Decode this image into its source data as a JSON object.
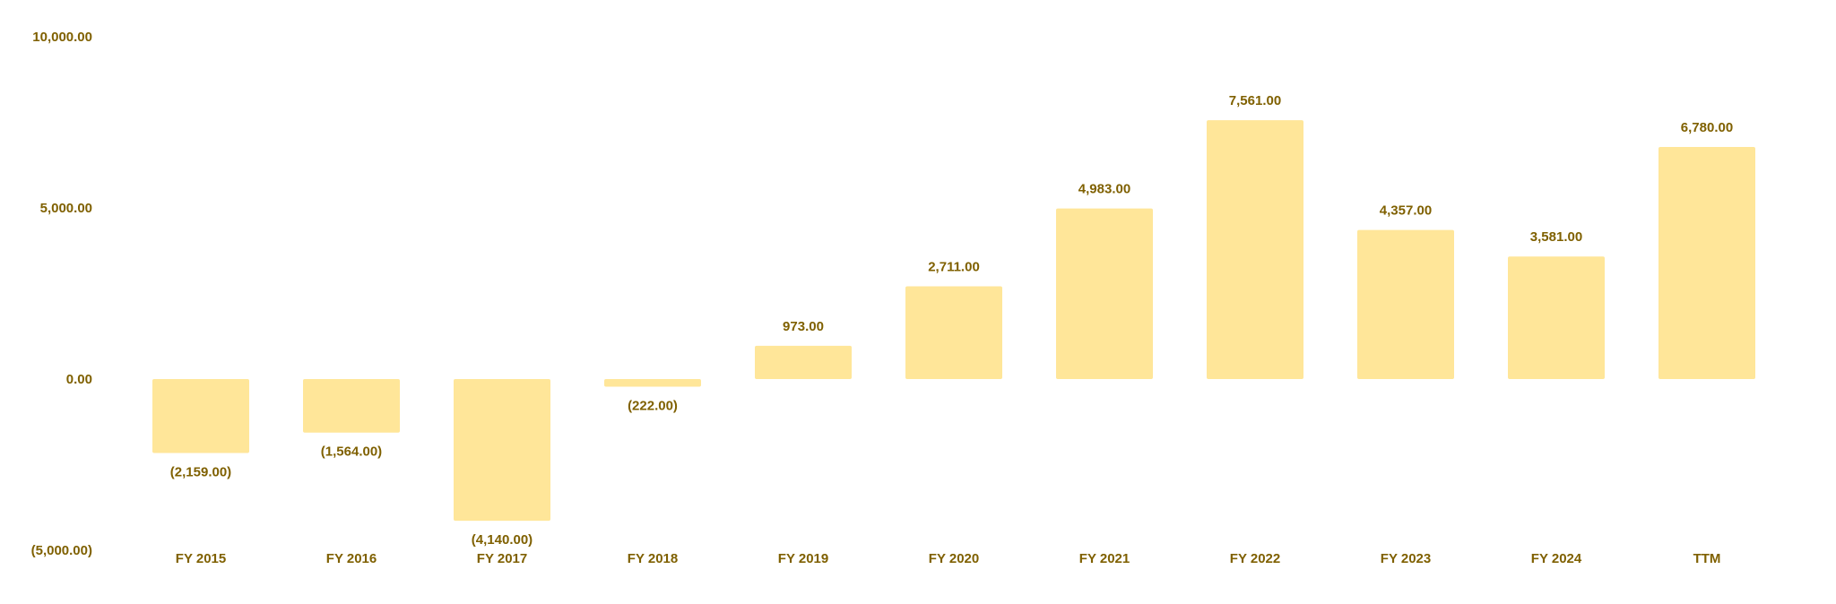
{
  "chart_data": {
    "type": "bar",
    "categories": [
      "FY 2015",
      "FY 2016",
      "FY 2017",
      "FY 2018",
      "FY 2019",
      "FY 2020",
      "FY 2021",
      "FY 2022",
      "FY 2023",
      "FY 2024",
      "TTM"
    ],
    "values": [
      -2159,
      -1564,
      -4140,
      -222,
      973,
      2711,
      4983,
      7561,
      4357,
      3581,
      6780
    ],
    "value_labels": [
      "(2,159.00)",
      "(1,564.00)",
      "(4,140.00)",
      "(222.00)",
      "973.00",
      "2,711.00",
      "4,983.00",
      "7,561.00",
      "4,357.00",
      "3,581.00",
      "6,780.00"
    ],
    "y_ticks": [
      10000,
      5000,
      0,
      -5000
    ],
    "y_tick_labels": [
      "10,000.00",
      "5,000.00",
      "0.00",
      "(5,000.00)"
    ],
    "ylim": [
      -5000,
      10000
    ],
    "grid": false,
    "legend": "none",
    "colors": {
      "bar": "#FFE699",
      "text": "#7F6000"
    }
  }
}
